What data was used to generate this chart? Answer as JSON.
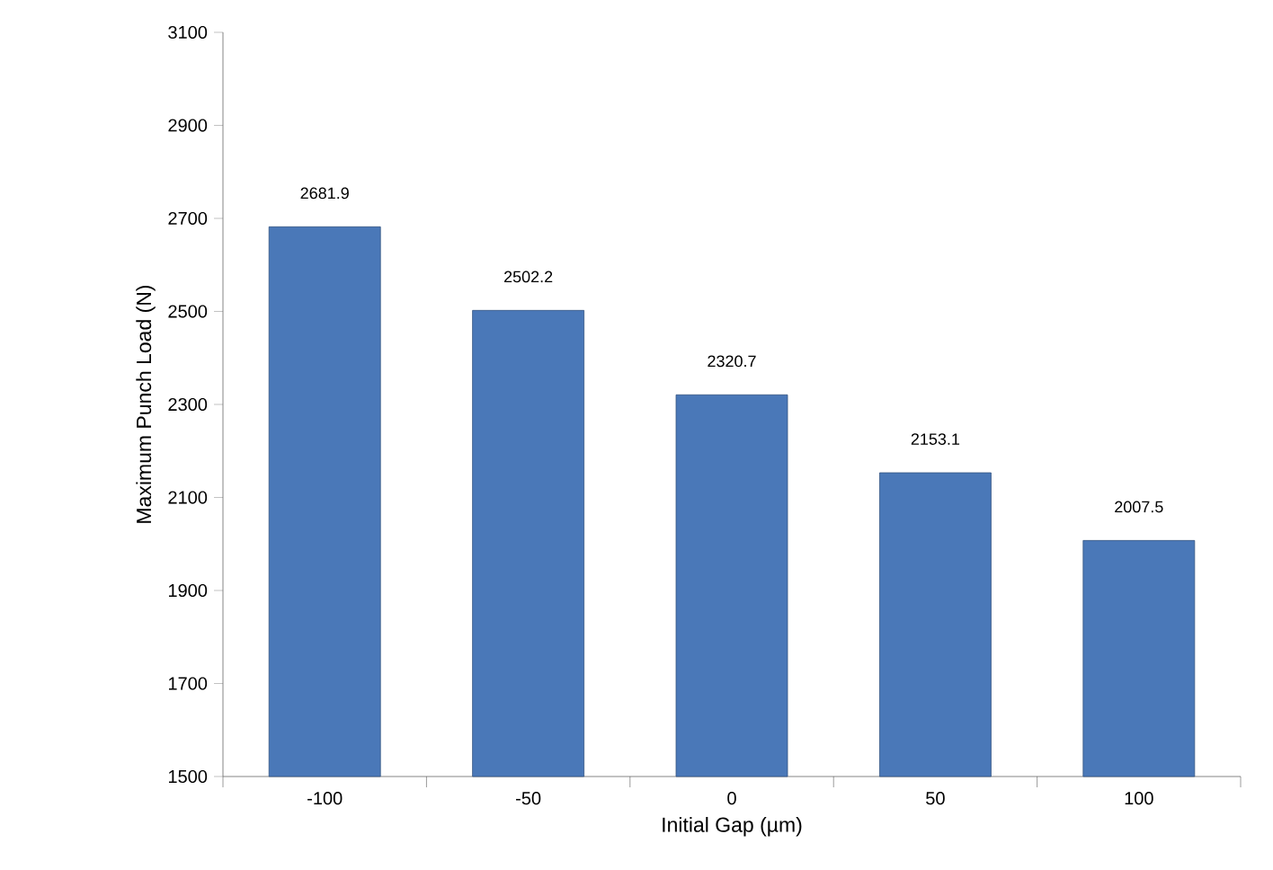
{
  "chart_data": {
    "type": "bar",
    "xlabel": "Initial Gap (µm)",
    "ylabel": "Maximum Punch Load (N)",
    "categories": [
      "-100",
      "-50",
      "0",
      "50",
      "100"
    ],
    "values": [
      2681.9,
      2502.2,
      2320.7,
      2153.1,
      2007.5
    ],
    "color": "#4a78b8",
    "ylim": [
      1500,
      3100
    ],
    "yticks": [
      1500,
      1700,
      1900,
      2100,
      2300,
      2500,
      2700,
      2900,
      3100
    ],
    "data_labels": true,
    "grid": false
  }
}
